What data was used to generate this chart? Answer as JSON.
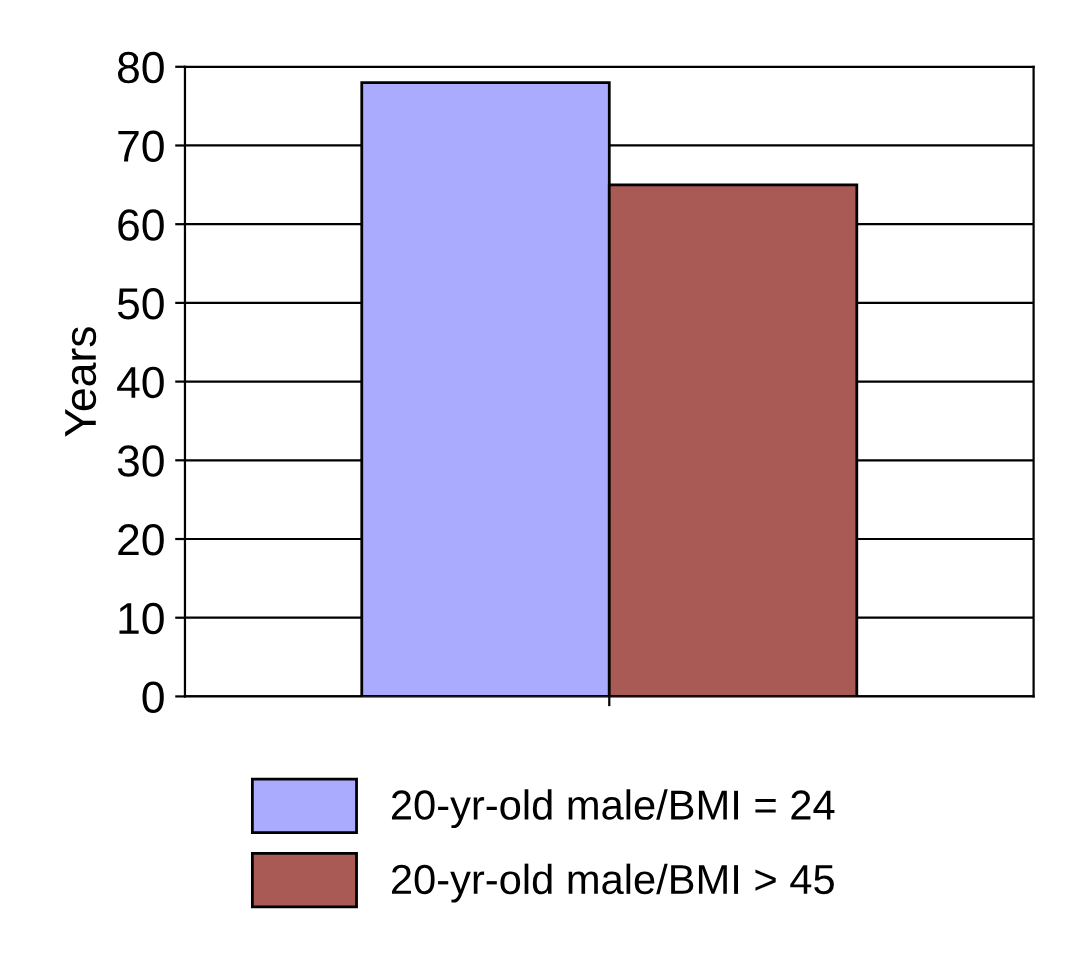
{
  "chart_data": {
    "type": "bar",
    "ylabel": "Years",
    "categories": [
      null
    ],
    "series": [
      {
        "name": "20-yr-old male/BMI = 24",
        "color": "#aaaaff",
        "values": [
          78
        ]
      },
      {
        "name": "20-yr-old male/BMI > 45",
        "color": "#aa5a55",
        "values": [
          65
        ]
      }
    ],
    "ylim": [
      0,
      80
    ],
    "yticks": [
      0,
      10,
      20,
      30,
      40,
      50,
      60,
      70,
      80
    ],
    "grid": "y",
    "legend": "bottom"
  }
}
